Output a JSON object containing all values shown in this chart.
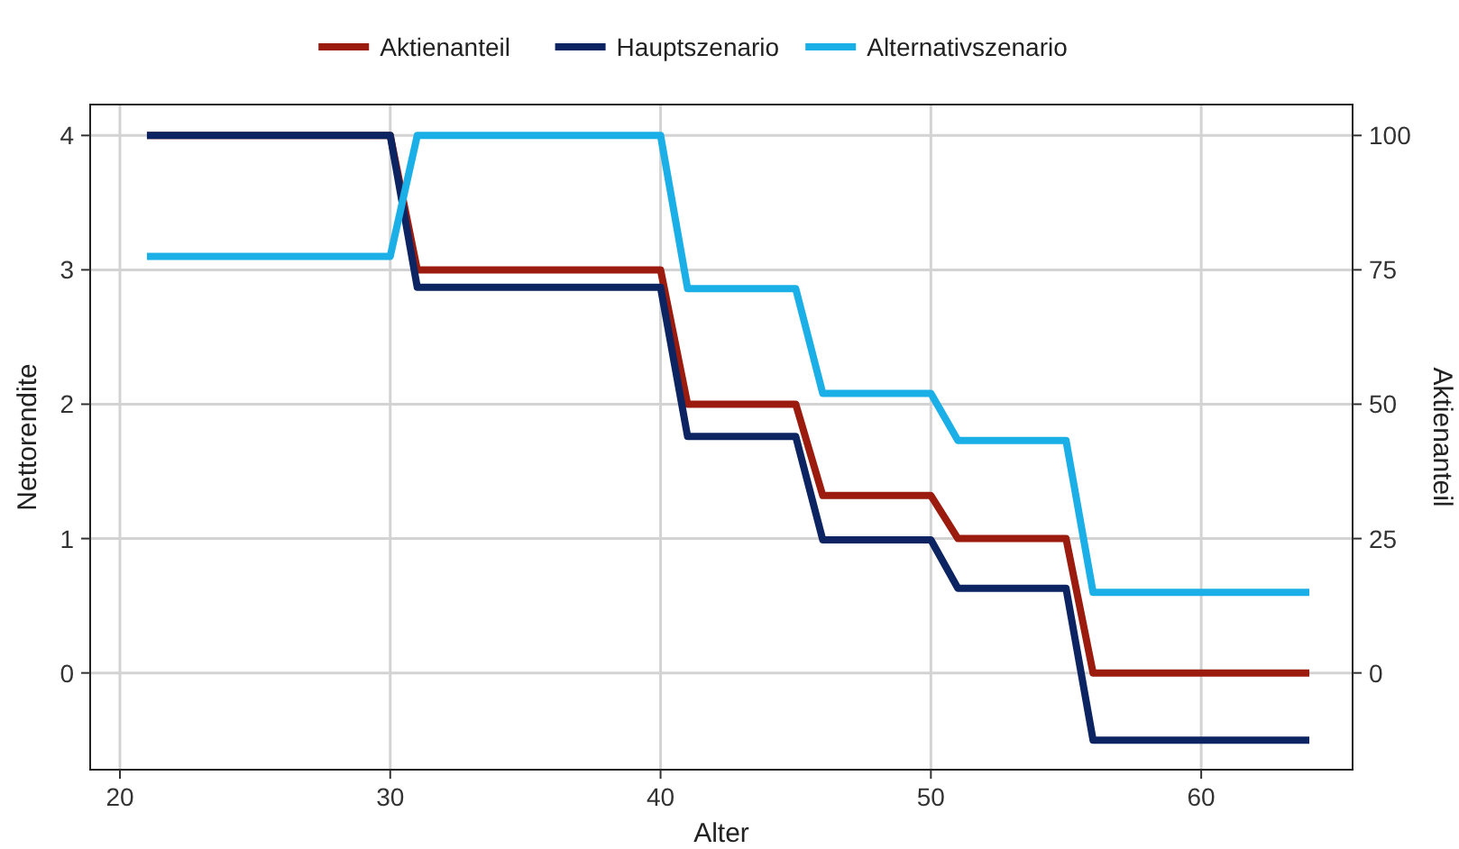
{
  "chart_data": {
    "type": "line",
    "xlabel": "Alter",
    "ylabel": "Nettorendite",
    "y2label": "Aktienanteil",
    "x": [
      21,
      30,
      31,
      40,
      41,
      45,
      46,
      50,
      51,
      55,
      56,
      64
    ],
    "series": [
      {
        "name": "Aktienanteil",
        "color": "#9b1c0f",
        "axis": "y2",
        "values": [
          100,
          100,
          75,
          75,
          50,
          50,
          33,
          33,
          25,
          25,
          0,
          0
        ]
      },
      {
        "name": "Hauptszenario",
        "color": "#0c2461",
        "values": [
          4,
          4,
          2.87,
          2.87,
          1.76,
          1.76,
          0.99,
          0.99,
          0.63,
          0.63,
          -0.5,
          -0.5
        ]
      },
      {
        "name": "Alternativszenario",
        "color": "#1aafe6",
        "values": [
          3.1,
          3.1,
          4,
          4,
          2.86,
          2.86,
          2.08,
          2.08,
          1.73,
          1.73,
          0.6,
          0.6
        ]
      }
    ],
    "xlim": [
      18.9,
      65.6
    ],
    "xticks": [
      20,
      30,
      40,
      50,
      60
    ],
    "ylim": [
      -0.72,
      4.23
    ],
    "yticks": [
      0,
      1,
      2,
      3,
      4
    ],
    "y2lim": [
      -18,
      105.75
    ],
    "y2ticks": [
      0,
      25,
      50,
      75,
      100
    ],
    "grid": true,
    "legend": "top",
    "line_style": "solid",
    "marker": "none"
  }
}
